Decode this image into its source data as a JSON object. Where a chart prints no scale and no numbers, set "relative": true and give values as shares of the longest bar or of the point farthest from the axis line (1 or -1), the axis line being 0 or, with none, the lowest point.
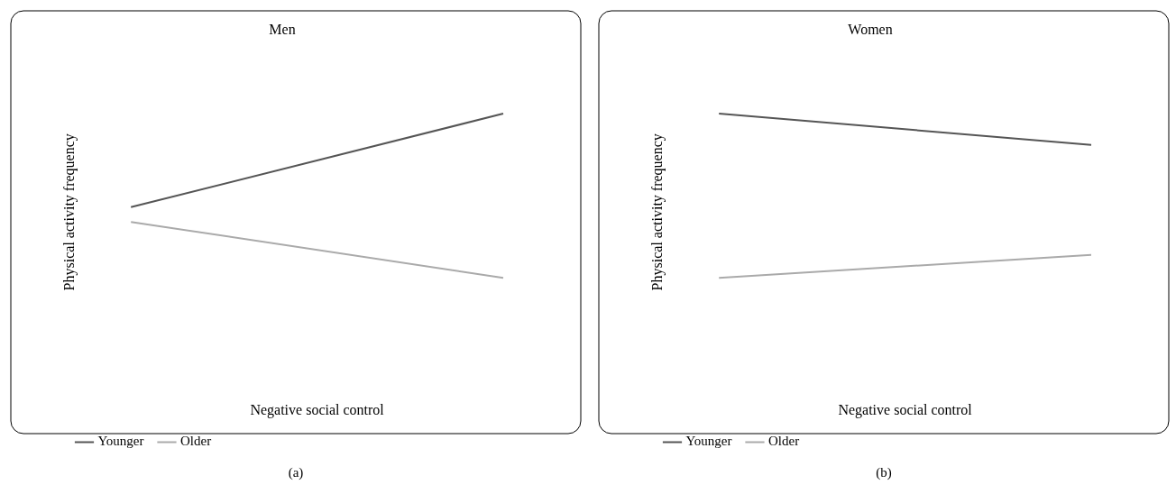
{
  "chart_data": [
    {
      "type": "line",
      "title": "Men",
      "xlabel": "Negative social control",
      "ylabel": "Physical activity frequency",
      "categories": [
        null,
        null
      ],
      "relative": true,
      "legend": "bottom left",
      "marker": "none",
      "annotations": [
        "(a)"
      ],
      "series": [
        {
          "name": "Younger",
          "color": "#555555",
          "values": [
            0.43,
            1
          ]
        },
        {
          "name": "Older",
          "color": "#aaaaaa",
          "values": [
            0.34,
            0
          ]
        }
      ]
    },
    {
      "type": "line",
      "title": "Women",
      "xlabel": "Negative social control",
      "ylabel": "Physical activity frequency",
      "categories": [
        null,
        null
      ],
      "relative": true,
      "legend": "bottom left",
      "marker": "none",
      "annotations": [
        "(b)"
      ],
      "series": [
        {
          "name": "Younger",
          "color": "#555555",
          "values": [
            1,
            0.81
          ]
        },
        {
          "name": "Older",
          "color": "#aaaaaa",
          "values": [
            0,
            0.14
          ]
        }
      ]
    }
  ]
}
